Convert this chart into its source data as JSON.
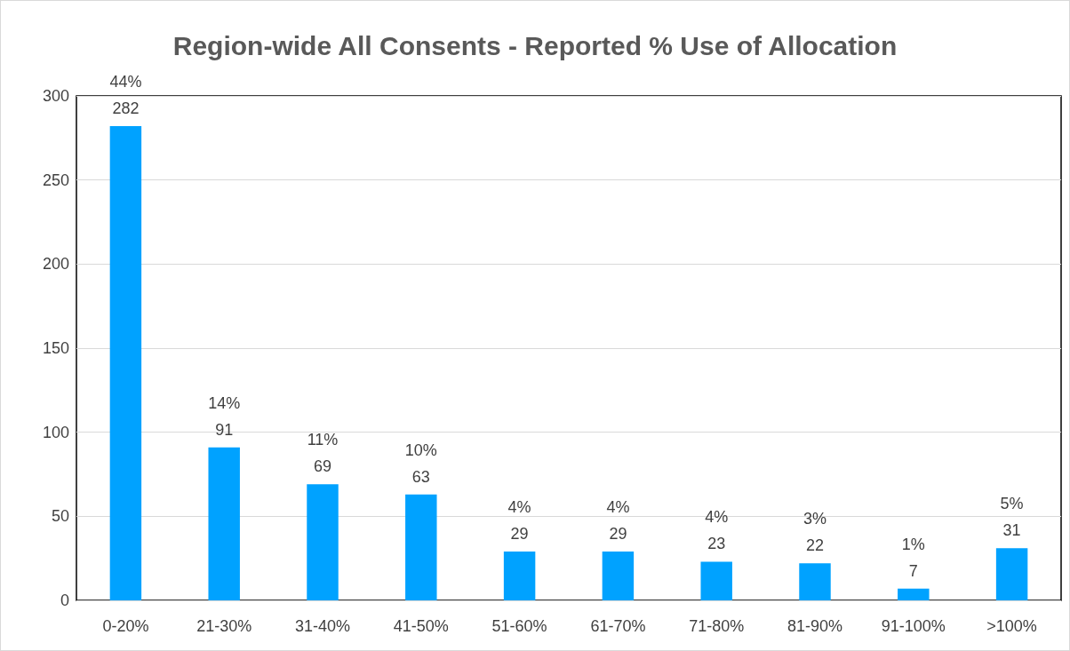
{
  "chart_data": {
    "type": "bar",
    "title": "Region-wide All Consents - Reported % Use of Allocation",
    "categories": [
      "0-20%",
      "21-30%",
      "31-40%",
      "41-50%",
      "51-60%",
      "61-70%",
      "71-80%",
      "81-90%",
      "91-100%",
      ">100%"
    ],
    "values": [
      282,
      91,
      69,
      63,
      29,
      29,
      23,
      22,
      7,
      31
    ],
    "value_labels": [
      "44%\n282",
      "14%\n91",
      "11%\n69",
      "10%\n63",
      "4%\n29",
      "4%\n29",
      "4%\n23",
      "3%\n22",
      "1%\n7",
      "5%\n31"
    ],
    "color": "#00a2ff",
    "ylim": [
      0,
      300
    ],
    "yticks": [
      0,
      50,
      100,
      150,
      200,
      250,
      300
    ],
    "grid": "y"
  }
}
